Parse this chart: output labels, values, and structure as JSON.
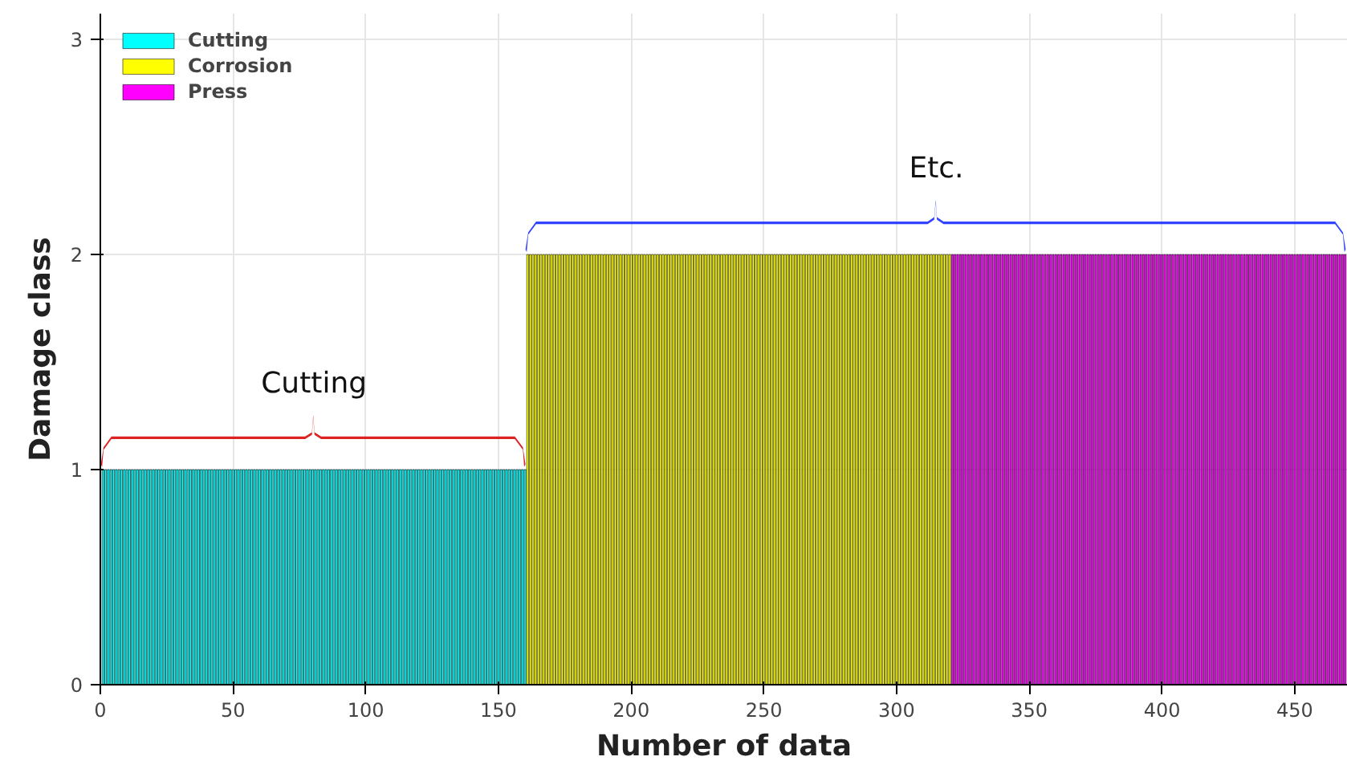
{
  "chart_data": {
    "type": "bar",
    "xlabel": "Number of data",
    "ylabel": "Damage class",
    "xlim": [
      0,
      470
    ],
    "ylim": [
      0,
      3.12
    ],
    "xticks": [
      0,
      50,
      100,
      150,
      200,
      250,
      300,
      350,
      400,
      450
    ],
    "yticks": [
      0,
      1,
      2,
      3
    ],
    "grid": true,
    "legend": "top left",
    "annotations": [
      "Cutting",
      "Etc."
    ],
    "series": [
      {
        "name": "Cutting",
        "color": "#00ffff",
        "x": [
          1,
          2,
          3,
          4,
          5,
          6,
          7,
          8,
          9,
          10,
          11,
          12,
          13,
          14,
          15,
          16,
          17,
          18,
          19,
          20,
          21,
          22,
          23,
          24,
          25,
          26,
          27,
          28,
          29,
          30,
          31,
          32,
          33,
          34,
          35,
          36,
          37,
          38,
          39,
          40,
          41,
          42,
          43,
          44,
          45,
          46,
          47,
          48,
          49,
          50,
          51,
          52,
          53,
          54,
          55,
          56,
          57,
          58,
          59,
          60,
          61,
          62,
          63,
          64,
          65,
          66,
          67,
          68,
          69,
          70,
          71,
          72,
          73,
          74,
          75,
          76,
          77,
          78,
          79,
          80,
          81,
          82,
          83,
          84,
          85,
          86,
          87,
          88,
          89,
          90,
          91,
          92,
          93,
          94,
          95,
          96,
          97,
          98,
          99,
          100,
          101,
          102,
          103,
          104,
          105,
          106,
          107,
          108,
          109,
          110,
          111,
          112,
          113,
          114,
          115,
          116,
          117,
          118,
          119,
          120,
          121,
          122,
          123,
          124,
          125,
          126,
          127,
          128,
          129,
          130,
          131,
          132,
          133,
          134,
          135,
          136,
          137,
          138,
          139,
          140,
          141,
          142,
          143,
          144,
          145,
          146,
          147,
          148,
          149,
          150,
          151,
          152,
          153,
          154,
          155,
          156,
          157,
          158,
          159,
          160
        ],
        "values": [
          1,
          1,
          1,
          1,
          1,
          1,
          1,
          1,
          1,
          1,
          1,
          1,
          1,
          1,
          1,
          1,
          1,
          1,
          1,
          1,
          1,
          1,
          1,
          1,
          1,
          1,
          1,
          1,
          1,
          1,
          1,
          1,
          1,
          1,
          1,
          1,
          1,
          1,
          1,
          1,
          1,
          1,
          1,
          1,
          1,
          1,
          1,
          1,
          1,
          1,
          1,
          1,
          1,
          1,
          1,
          1,
          1,
          1,
          1,
          1,
          1,
          1,
          1,
          1,
          1,
          1,
          1,
          1,
          1,
          1,
          1,
          1,
          1,
          1,
          1,
          1,
          1,
          1,
          1,
          1,
          1,
          1,
          1,
          1,
          1,
          1,
          1,
          1,
          1,
          1,
          1,
          1,
          1,
          1,
          1,
          1,
          1,
          1,
          1,
          1,
          1,
          1,
          1,
          1,
          1,
          1,
          1,
          1,
          1,
          1,
          1,
          1,
          1,
          1,
          1,
          1,
          1,
          1,
          1,
          1,
          1,
          1,
          1,
          1,
          1,
          1,
          1,
          1,
          1,
          1,
          1,
          1,
          1,
          1,
          1,
          1,
          1,
          1,
          1,
          1,
          1,
          1,
          1,
          1,
          1,
          1,
          1,
          1,
          1,
          1,
          1,
          1,
          1,
          1,
          1,
          1,
          1,
          1,
          1,
          1
        ]
      },
      {
        "name": "Corrosion",
        "color": "#ffff00",
        "x": [
          161,
          162,
          163,
          164,
          165,
          166,
          167,
          168,
          169,
          170,
          171,
          172,
          173,
          174,
          175,
          176,
          177,
          178,
          179,
          180,
          181,
          182,
          183,
          184,
          185,
          186,
          187,
          188,
          189,
          190,
          191,
          192,
          193,
          194,
          195,
          196,
          197,
          198,
          199,
          200,
          201,
          202,
          203,
          204,
          205,
          206,
          207,
          208,
          209,
          210,
          211,
          212,
          213,
          214,
          215,
          216,
          217,
          218,
          219,
          220,
          221,
          222,
          223,
          224,
          225,
          226,
          227,
          228,
          229,
          230,
          231,
          232,
          233,
          234,
          235,
          236,
          237,
          238,
          239,
          240,
          241,
          242,
          243,
          244,
          245,
          246,
          247,
          248,
          249,
          250,
          251,
          252,
          253,
          254,
          255,
          256,
          257,
          258,
          259,
          260,
          261,
          262,
          263,
          264,
          265,
          266,
          267,
          268,
          269,
          270,
          271,
          272,
          273,
          274,
          275,
          276,
          277,
          278,
          279,
          280,
          281,
          282,
          283,
          284,
          285,
          286,
          287,
          288,
          289,
          290,
          291,
          292,
          293,
          294,
          295,
          296,
          297,
          298,
          299,
          300,
          301,
          302,
          303,
          304,
          305,
          306,
          307,
          308,
          309,
          310,
          311,
          312,
          313,
          314,
          315,
          316,
          317,
          318,
          319,
          320
        ],
        "values": [
          2,
          2,
          2,
          2,
          2,
          2,
          2,
          2,
          2,
          2,
          2,
          2,
          2,
          2,
          2,
          2,
          2,
          2,
          2,
          2,
          2,
          2,
          2,
          2,
          2,
          2,
          2,
          2,
          2,
          2,
          2,
          2,
          2,
          2,
          2,
          2,
          2,
          2,
          2,
          2,
          2,
          2,
          2,
          2,
          2,
          2,
          2,
          2,
          2,
          2,
          2,
          2,
          2,
          2,
          2,
          2,
          2,
          2,
          2,
          2,
          2,
          2,
          2,
          2,
          2,
          2,
          2,
          2,
          2,
          2,
          2,
          2,
          2,
          2,
          2,
          2,
          2,
          2,
          2,
          2,
          2,
          2,
          2,
          2,
          2,
          2,
          2,
          2,
          2,
          2,
          2,
          2,
          2,
          2,
          2,
          2,
          2,
          2,
          2,
          2,
          2,
          2,
          2,
          2,
          2,
          2,
          2,
          2,
          2,
          2,
          2,
          2,
          2,
          2,
          2,
          2,
          2,
          2,
          2,
          2,
          2,
          2,
          2,
          2,
          2,
          2,
          2,
          2,
          2,
          2,
          2,
          2,
          2,
          2,
          2,
          2,
          2,
          2,
          2,
          2,
          2,
          2,
          2,
          2,
          2,
          2,
          2,
          2,
          2,
          2,
          2,
          2,
          2,
          2,
          2,
          2,
          2,
          2,
          2,
          2
        ]
      },
      {
        "name": "Press",
        "color": "#ff00ff",
        "x": [
          321,
          322,
          323,
          324,
          325,
          326,
          327,
          328,
          329,
          330,
          331,
          332,
          333,
          334,
          335,
          336,
          337,
          338,
          339,
          340,
          341,
          342,
          343,
          344,
          345,
          346,
          347,
          348,
          349,
          350,
          351,
          352,
          353,
          354,
          355,
          356,
          357,
          358,
          359,
          360,
          361,
          362,
          363,
          364,
          365,
          366,
          367,
          368,
          369,
          370,
          371,
          372,
          373,
          374,
          375,
          376,
          377,
          378,
          379,
          380,
          381,
          382,
          383,
          384,
          385,
          386,
          387,
          388,
          389,
          390,
          391,
          392,
          393,
          394,
          395,
          396,
          397,
          398,
          399,
          400,
          401,
          402,
          403,
          404,
          405,
          406,
          407,
          408,
          409,
          410,
          411,
          412,
          413,
          414,
          415,
          416,
          417,
          418,
          419,
          420,
          421,
          422,
          423,
          424,
          425,
          426,
          427,
          428,
          429,
          430,
          431,
          432,
          433,
          434,
          435,
          436,
          437,
          438,
          439,
          440,
          441,
          442,
          443,
          444,
          445,
          446,
          447,
          448,
          449,
          450,
          451,
          452,
          453,
          454,
          455,
          456,
          457,
          458,
          459,
          460,
          461,
          462,
          463,
          464,
          465,
          466,
          467,
          468,
          469
        ],
        "values": [
          2,
          2,
          2,
          2,
          2,
          2,
          2,
          2,
          2,
          2,
          2,
          2,
          2,
          2,
          2,
          2,
          2,
          2,
          2,
          2,
          2,
          2,
          2,
          2,
          2,
          2,
          2,
          2,
          2,
          2,
          2,
          2,
          2,
          2,
          2,
          2,
          2,
          2,
          2,
          2,
          2,
          2,
          2,
          2,
          2,
          2,
          2,
          2,
          2,
          2,
          2,
          2,
          2,
          2,
          2,
          2,
          2,
          2,
          2,
          2,
          2,
          2,
          2,
          2,
          2,
          2,
          2,
          2,
          2,
          2,
          2,
          2,
          2,
          2,
          2,
          2,
          2,
          2,
          2,
          2,
          2,
          2,
          2,
          2,
          2,
          2,
          2,
          2,
          2,
          2,
          2,
          2,
          2,
          2,
          2,
          2,
          2,
          2,
          2,
          2,
          2,
          2,
          2,
          2,
          2,
          2,
          2,
          2,
          2,
          2,
          2,
          2,
          2,
          2,
          2,
          2,
          2,
          2,
          2,
          2,
          2,
          2,
          2,
          2,
          2,
          2,
          2,
          2,
          2,
          2,
          2,
          2,
          2,
          2,
          2,
          2,
          2,
          2,
          2,
          2,
          2,
          2,
          2,
          2,
          2,
          2,
          2,
          2,
          2
        ]
      }
    ]
  }
}
